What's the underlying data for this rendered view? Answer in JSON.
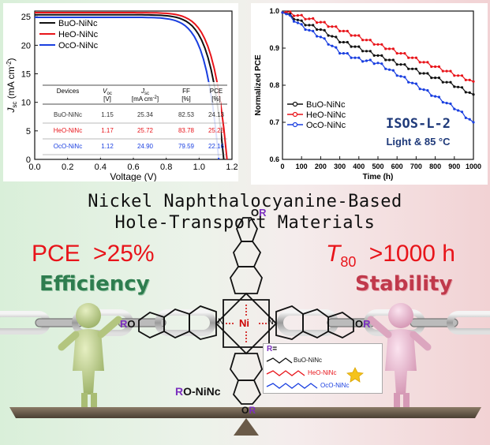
{
  "chart_data": [
    {
      "type": "line",
      "title": "",
      "xlabel": "Voltage (V)",
      "ylabel": "J",
      "ylabel_sub": "sc",
      "ylabel_unit": "(mA cm",
      "ylabel_sup": "-2",
      "ylabel_end": ")",
      "xlim": [
        0,
        1.2
      ],
      "ylim": [
        0,
        26
      ],
      "xticks": [
        "0.0",
        "0.2",
        "0.4",
        "0.6",
        "0.8",
        "1.0",
        "1.2"
      ],
      "yticks": [
        "0",
        "5",
        "10",
        "15",
        "20",
        "25"
      ],
      "series": [
        {
          "name": "BuO-NiNc",
          "color": "#111111",
          "jsc": 25.34,
          "voc": 1.15
        },
        {
          "name": "HeO-NiNc",
          "color": "#e8141a",
          "jsc": 25.72,
          "voc": 1.17
        },
        {
          "name": "OcO-NiNc",
          "color": "#1a3fe0",
          "jsc": 24.9,
          "voc": 1.12
        }
      ],
      "table": {
        "headers": [
          [
            "Devices",
            ""
          ],
          [
            "V",
            "oc",
            "[V]"
          ],
          [
            "J",
            "sc",
            "[mA cm",
            "-2",
            "]"
          ],
          [
            "FF",
            "[%]"
          ],
          [
            "PCE",
            "[%]"
          ]
        ],
        "rows": [
          {
            "device": "BuO-NiNc",
            "voc": "1.15",
            "jsc": "25.34",
            "ff": "82.53",
            "pce": "24.13",
            "color": "#333333"
          },
          {
            "device": "HeO-NiNc",
            "voc": "1.17",
            "jsc": "25.72",
            "ff": "83.78",
            "pce": "25.23",
            "color": "#e8141a"
          },
          {
            "device": "OcO-NiNc",
            "voc": "1.12",
            "jsc": "24.90",
            "ff": "79.59",
            "pce": "22.16",
            "color": "#1a3fe0"
          }
        ]
      }
    },
    {
      "type": "line",
      "title": "",
      "xlabel": "Time (h)",
      "ylabel": "Normalized PCE",
      "xlim": [
        0,
        1000
      ],
      "ylim": [
        0.6,
        1.0
      ],
      "xticks": [
        "0",
        "100",
        "200",
        "300",
        "400",
        "500",
        "600",
        "700",
        "800",
        "900",
        "1000"
      ],
      "yticks": [
        "0.6",
        "0.7",
        "0.8",
        "0.9",
        "1.0"
      ],
      "annotation": "ISOS-L-2",
      "annotation2": "Light & 85 °C",
      "series": [
        {
          "name": "BuO-NiNc",
          "color": "#111111",
          "x": [
            0,
            100,
            200,
            300,
            400,
            500,
            600,
            700,
            800,
            900,
            1000
          ],
          "values": [
            1.0,
            0.97,
            0.95,
            0.92,
            0.9,
            0.88,
            0.86,
            0.84,
            0.82,
            0.8,
            0.775
          ]
        },
        {
          "name": "HeO-NiNc",
          "color": "#e8141a",
          "x": [
            0,
            100,
            200,
            300,
            400,
            500,
            600,
            700,
            800,
            900,
            1000
          ],
          "values": [
            1.0,
            0.985,
            0.97,
            0.95,
            0.93,
            0.91,
            0.89,
            0.87,
            0.85,
            0.83,
            0.81
          ]
        },
        {
          "name": "OcO-NiNc",
          "color": "#1a3fe0",
          "x": [
            0,
            100,
            200,
            300,
            400,
            500,
            600,
            700,
            800,
            900,
            1000
          ],
          "values": [
            1.0,
            0.96,
            0.93,
            0.89,
            0.87,
            0.86,
            0.83,
            0.8,
            0.77,
            0.74,
            0.7
          ]
        }
      ]
    }
  ],
  "headline": {
    "line1": "Nickel Naphthalocyanine-Based",
    "line2": "Hole-Transport Materials"
  },
  "left_claim": {
    "metric": "PCE",
    "op": ">",
    "value": "25%",
    "word": "Efficiency",
    "color": "#2e7d4f"
  },
  "right_claim": {
    "metric": "T",
    "metric_sub": "80",
    "op": ">",
    "value": "1000 h",
    "word": "Stability",
    "color": "#c0394b"
  },
  "molecule": {
    "substituent": "OR",
    "sub_o": "O",
    "sub_r": "R",
    "ni": "Ni",
    "n": "N",
    "caption_r": "R",
    "caption_rest": "O-NiNc",
    "r_eq": "R=",
    "legend": [
      {
        "name": "BuO-NiNc",
        "color": "#111111"
      },
      {
        "name": "HeO-NiNc",
        "color": "#e8141a"
      },
      {
        "name": "OcO-NiNc",
        "color": "#1a3fe0"
      }
    ]
  },
  "colors": {
    "purple": "#7b2fbe",
    "red": "#e8141a",
    "blue": "#1a3fe0"
  }
}
